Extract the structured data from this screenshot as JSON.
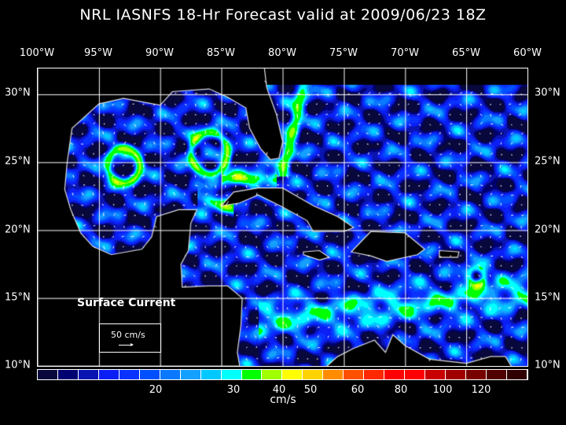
{
  "title": "NRL IASNFS  18-Hr Forecast valid at 2009/06/23 18Z",
  "lon_labels": [
    "100°W",
    "95°W",
    "90°W",
    "85°W",
    "80°W",
    "75°W",
    "70°W",
    "65°W",
    "60°W"
  ],
  "lat_labels": [
    "30°N",
    "25°N",
    "20°N",
    "15°N",
    "10°N"
  ],
  "map": {
    "lon_range": [
      -100,
      -60
    ],
    "lat_range": [
      10,
      32
    ],
    "variable": "Surface Current",
    "reference_vector": "50 cm/s"
  },
  "colorbar": {
    "unit": "cm/s",
    "colors": [
      "#08083c",
      "#000070",
      "#0a14b0",
      "#0a1ef5",
      "#0a32ff",
      "#0050ff",
      "#0a78ff",
      "#14a0ff",
      "#00c8ff",
      "#00ffff",
      "#00ff00",
      "#a0ff00",
      "#ffff00",
      "#ffd200",
      "#ff8c00",
      "#ff5000",
      "#ff2800",
      "#ff0000",
      "#ff0000",
      "#c80000",
      "#a00000",
      "#780000",
      "#500000",
      "#300000"
    ],
    "labels": [
      "20",
      "30",
      "40",
      "50",
      "60",
      "80",
      "100",
      "120"
    ]
  }
}
